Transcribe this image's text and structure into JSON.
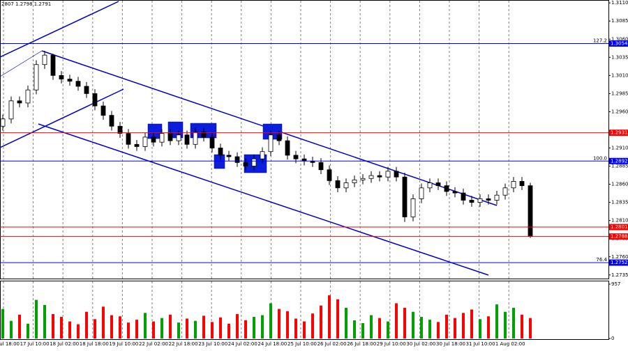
{
  "chart_data": {
    "type": "candlestick",
    "header": "2807 1.2798 1.2791",
    "ylim": [
      1.273,
      1.3114
    ],
    "yticks": [
      {
        "value": 1.311,
        "label": "1.3110"
      },
      1.3085,
      {
        "value": 1.306,
        "label": "1.3060"
      },
      1.3035,
      {
        "value": 1.301,
        "label": "1.3010"
      },
      1.2985,
      {
        "value": 1.296,
        "label": "1.2960"
      },
      {
        "value": 1.291,
        "label": "1.2910"
      },
      1.2885,
      {
        "value": 1.286,
        "label": "1.2860"
      },
      1.2835,
      {
        "value": 1.281,
        "label": "1.2810"
      },
      1.2785,
      {
        "value": 1.276,
        "label": "1.2760"
      },
      1.2735
    ],
    "xlabels": [
      "16 Jul 18:00",
      "17 Jul 10:00",
      "18 Jul 02:00",
      "18 Jul 18:00",
      "19 Jul 10:00",
      "22 Jul 02:00",
      "22 Jul 18:00",
      "23 Jul 10:00",
      "24 Jul 02:00",
      "24 Jul 18:00",
      "25 Jul 10:00",
      "26 Jul 02:00",
      "26 Jul 18:00",
      "29 Jul 10:00",
      "30 Jul 02:00",
      "30 Jul 18:00",
      "31 Jul 10:00",
      "1 Aug 02:00"
    ],
    "grid": true,
    "candle_color": "#000000",
    "up_color": "#00a000",
    "down_color": "#ff0000",
    "open": [
      1.294,
      1.295,
      1.2975,
      1.2972,
      1.299,
      1.3025,
      1.3038,
      1.301,
      1.3005,
      1.3002,
      1.2995,
      1.2985,
      1.2968,
      1.2955,
      1.294,
      1.293,
      1.2915,
      1.2912,
      1.2925,
      1.2918,
      1.293,
      1.292,
      1.2928,
      1.2915,
      1.2932,
      1.2925,
      1.291,
      1.29,
      1.2898,
      1.289,
      1.2885,
      1.2895,
      1.2905,
      1.2928,
      1.292,
      1.29,
      1.2895,
      1.2892,
      1.289,
      1.288,
      1.2865,
      1.2855,
      1.2862,
      1.2866,
      1.2868,
      1.2872,
      1.287,
      1.2878,
      1.287,
      1.2815,
      1.284,
      1.2855,
      1.2862,
      1.2858,
      1.285,
      1.2848,
      1.2838,
      1.2835,
      1.284,
      1.2838,
      1.2845,
      1.2855,
      1.2864,
      1.2858
    ],
    "high": [
      1.2956,
      1.2981,
      1.2981,
      1.2996,
      1.3031,
      1.3044,
      1.304,
      1.3016,
      1.3011,
      1.3008,
      1.3001,
      1.2991,
      1.2974,
      1.2961,
      1.2946,
      1.2936,
      1.2921,
      1.2931,
      1.2931,
      1.2936,
      1.2936,
      1.2934,
      1.2934,
      1.2938,
      1.2938,
      1.2931,
      1.2916,
      1.2906,
      1.2904,
      1.2896,
      1.2901,
      1.2911,
      1.2934,
      1.2934,
      1.2926,
      1.2906,
      1.2901,
      1.2898,
      1.2896,
      1.2886,
      1.2871,
      1.2868,
      1.2872,
      1.2874,
      1.2878,
      1.2878,
      1.2884,
      1.2884,
      1.2876,
      1.2846,
      1.2861,
      1.2868,
      1.2868,
      1.2864,
      1.2856,
      1.2854,
      1.2844,
      1.2846,
      1.2846,
      1.2851,
      1.2861,
      1.287,
      1.287,
      1.2862
    ],
    "low": [
      1.2934,
      1.2944,
      1.2966,
      1.2966,
      1.2984,
      1.3019,
      1.3004,
      1.2999,
      1.2996,
      1.2989,
      1.2979,
      1.2962,
      1.2949,
      1.2934,
      1.2924,
      1.2909,
      1.2906,
      1.2906,
      1.2912,
      1.2912,
      1.2914,
      1.2914,
      1.2909,
      1.2909,
      1.2919,
      1.2904,
      1.2894,
      1.2892,
      1.2884,
      1.2879,
      1.2879,
      1.2889,
      1.2899,
      1.2914,
      1.2894,
      1.2889,
      1.2886,
      1.2884,
      1.2874,
      1.2859,
      1.2849,
      1.2849,
      1.2856,
      1.286,
      1.2862,
      1.2864,
      1.2864,
      1.2864,
      1.2808,
      1.2809,
      1.2834,
      1.2849,
      1.2852,
      1.2844,
      1.2842,
      1.2832,
      1.2829,
      1.2829,
      1.2832,
      1.2832,
      1.2839,
      1.2849,
      1.2852,
      1.2786
    ],
    "close": [
      1.295,
      1.2975,
      1.2972,
      1.299,
      1.3025,
      1.3038,
      1.301,
      1.3005,
      1.3002,
      1.2995,
      1.2985,
      1.2968,
      1.2955,
      1.294,
      1.293,
      1.2915,
      1.2912,
      1.2925,
      1.2918,
      1.293,
      1.292,
      1.2928,
      1.2915,
      1.2932,
      1.2925,
      1.291,
      1.29,
      1.2898,
      1.289,
      1.2885,
      1.2895,
      1.2905,
      1.2928,
      1.292,
      1.29,
      1.2895,
      1.2892,
      1.289,
      1.288,
      1.2865,
      1.2855,
      1.2862,
      1.2866,
      1.2868,
      1.2872,
      1.287,
      1.2878,
      1.287,
      1.2815,
      1.284,
      1.2855,
      1.2862,
      1.2858,
      1.285,
      1.2848,
      1.2838,
      1.2835,
      1.284,
      1.2838,
      1.2845,
      1.2855,
      1.2864,
      1.2858,
      1.2788
    ],
    "volume": [
      520,
      310,
      420,
      260,
      680,
      590,
      430,
      380,
      300,
      250,
      470,
      340,
      560,
      410,
      390,
      280,
      330,
      450,
      300,
      360,
      420,
      280,
      350,
      310,
      400,
      290,
      370,
      260,
      430,
      320,
      380,
      410,
      620,
      520,
      480,
      350,
      300,
      440,
      580,
      760,
      690,
      540,
      320,
      270,
      410,
      360,
      300,
      620,
      540,
      470,
      380,
      330,
      290,
      420,
      360,
      450,
      510,
      340,
      390,
      600,
      470,
      540,
      420,
      360
    ],
    "vlim": [
      0,
      957
    ],
    "vticks": [
      0,
      957
    ],
    "levels": [
      {
        "value": 1.3054,
        "color": "#0000ff",
        "label": "127.2"
      },
      {
        "value": 1.2931,
        "color": "#ff0000"
      },
      {
        "value": 1.2892,
        "color": "#0000ff",
        "label": "100.0"
      },
      {
        "value": 1.2801,
        "color": "#ff0000"
      },
      {
        "value": 1.2788,
        "color": "#ff0000"
      },
      {
        "value": 1.2752,
        "color": "#0000ff",
        "label": "76.4"
      }
    ]
  }
}
